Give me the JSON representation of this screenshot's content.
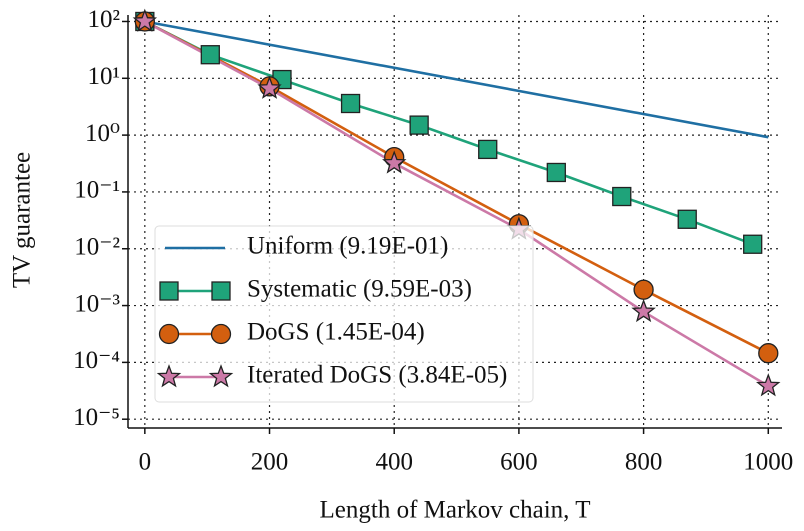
{
  "chart_data": {
    "type": "line",
    "x_label": "Length of Markov chain, T",
    "y_label": "TV guarantee",
    "ylog": true,
    "grid": true,
    "legend_position": "lower-left",
    "xlim": [
      -27,
      1022
    ],
    "ylim": [
      7e-06,
      130
    ],
    "xticks": [
      0,
      200,
      400,
      600,
      800,
      1000
    ],
    "yticks": [
      {
        "value": 100,
        "label": "10²"
      },
      {
        "value": 10,
        "label": "10¹"
      },
      {
        "value": 1,
        "label": "10⁰"
      },
      {
        "value": 0.1,
        "label": "10⁻¹"
      },
      {
        "value": 0.01,
        "label": "10⁻²"
      },
      {
        "value": 0.001,
        "label": "10⁻³"
      },
      {
        "value": 0.0001,
        "label": "10⁻⁴"
      },
      {
        "value": 1e-05,
        "label": "10⁻⁵"
      }
    ],
    "series": [
      {
        "name": "Uniform (9.19E-01)",
        "color": "#1f6fa3",
        "marker": "none",
        "x": [
          0,
          1000
        ],
        "values": [
          100,
          0.919
        ]
      },
      {
        "name": "Systematic (9.59E-03)",
        "color": "#1fa37a",
        "marker": "square",
        "x": [
          0,
          105,
          220,
          330,
          440,
          550,
          660,
          765,
          870,
          975
        ],
        "values": [
          100,
          26,
          9.5,
          3.6,
          1.5,
          0.56,
          0.22,
          0.083,
          0.033,
          0.012
        ]
      },
      {
        "name": "DoGS (1.45E-04)",
        "color": "#d35f0f",
        "marker": "circle",
        "x": [
          0,
          200,
          400,
          600,
          800,
          1000
        ],
        "values": [
          100,
          7.2,
          0.41,
          0.027,
          0.0019,
          0.000145
        ]
      },
      {
        "name": "Iterated DoGS (3.84E-05)",
        "color": "#cc79a7",
        "marker": "star",
        "x": [
          0,
          200,
          400,
          600,
          800,
          1000
        ],
        "values": [
          100,
          6.6,
          0.32,
          0.022,
          0.00078,
          3.84e-05
        ]
      }
    ]
  }
}
